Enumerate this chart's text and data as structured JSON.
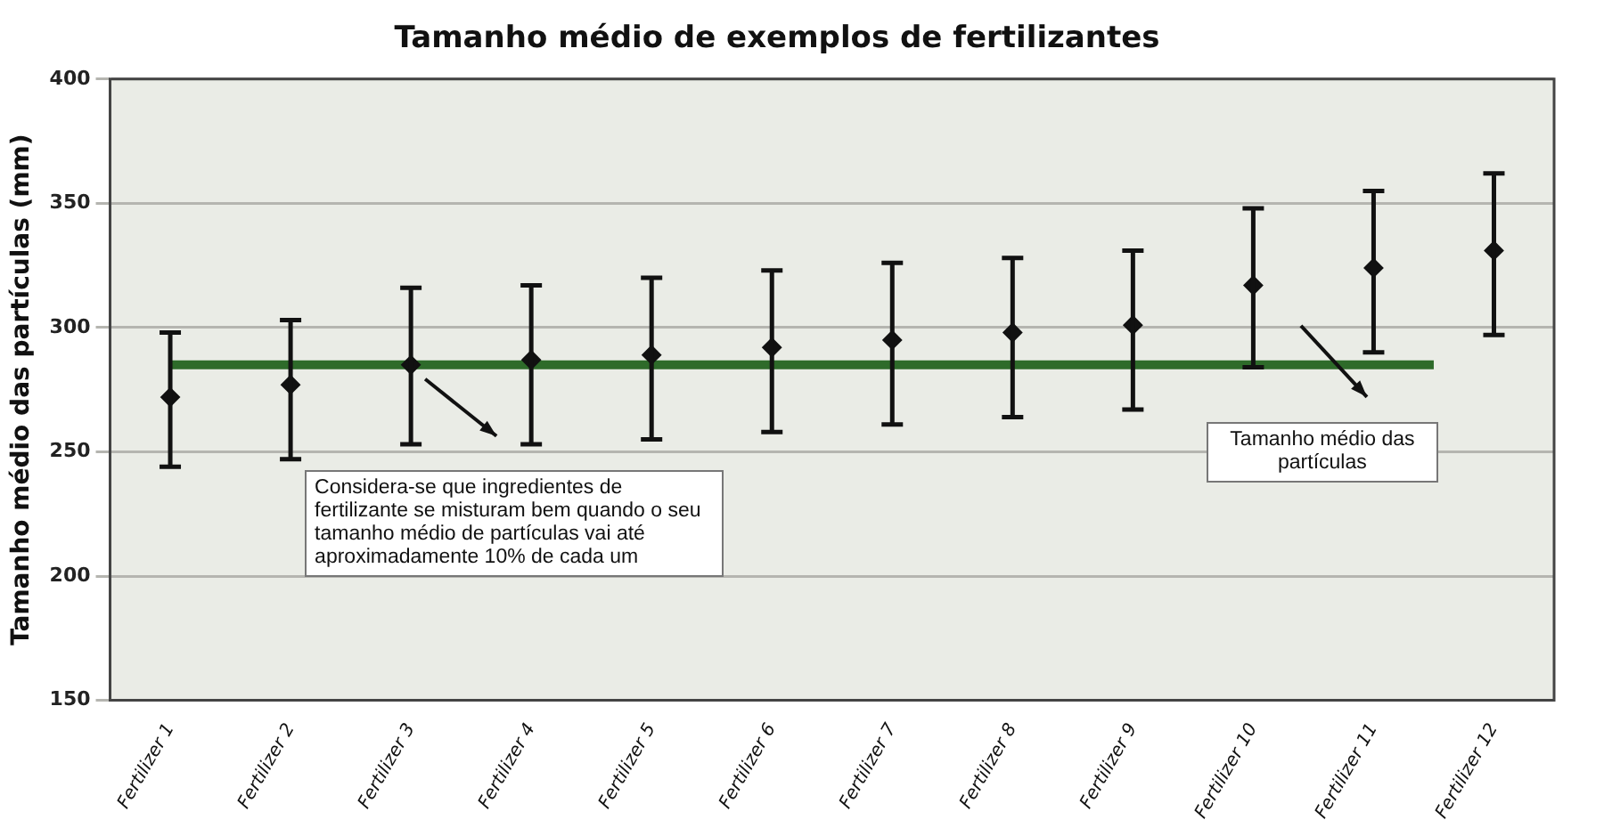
{
  "chart_data": {
    "type": "scatter",
    "title": "Tamanho médio de exemplos de fertilizantes",
    "ylabel": "Tamanho médio das partículas (mm)",
    "categories": [
      "Fertilizer 1",
      "Fertilizer 2",
      "Fertilizer 3",
      "Fertilizer 4",
      "Fertilizer 5",
      "Fertilizer 6",
      "Fertilizer 7",
      "Fertilizer 8",
      "Fertilizer 9",
      "Fertilizer 10",
      "Fertilizer 11",
      "Fertilizer 12"
    ],
    "series": [
      {
        "color": "#111111",
        "values": [
          272,
          277,
          285,
          287,
          289,
          292,
          295,
          298,
          301,
          317,
          324,
          331
        ],
        "errors": [
          [
            244,
            298
          ],
          [
            247,
            303
          ],
          [
            253,
            316
          ],
          [
            253,
            317
          ],
          [
            255,
            320
          ],
          [
            258,
            323
          ],
          [
            261,
            326
          ],
          [
            264,
            328
          ],
          [
            267,
            331
          ],
          [
            284,
            348
          ],
          [
            290,
            355
          ],
          [
            297,
            362
          ]
        ]
      }
    ],
    "ylim": [
      150,
      400
    ],
    "yticks": [
      150,
      200,
      250,
      300,
      350,
      400
    ],
    "grid": "y",
    "legend": false,
    "marker": "diamond",
    "ref_lines": [
      {
        "axis": "y",
        "value": 285,
        "color": "#2e6b2a"
      }
    ],
    "annotations": [
      "Considera-se que ingredientes de fertilizante se misturam bem quando o seu tamanho médio de partículas vai até aproximadamente 10% de cada um",
      "Tamanho médio das partículas"
    ]
  }
}
